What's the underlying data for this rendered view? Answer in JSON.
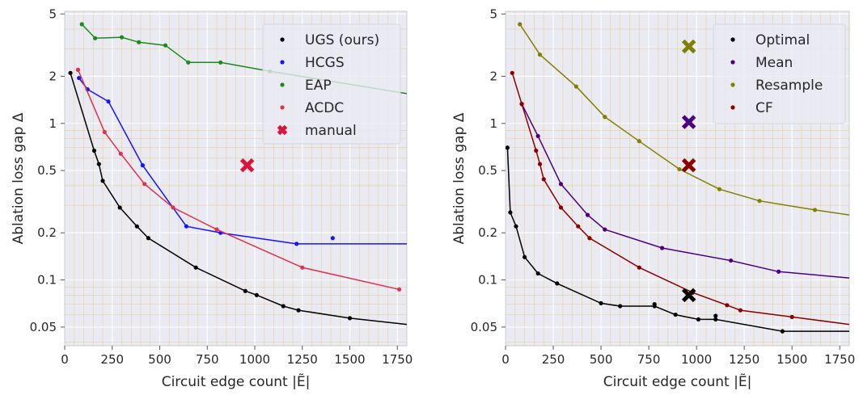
{
  "colors": {
    "panel_bg": "#eaeaf2",
    "major_grid": "#ffffff",
    "minor_grid": "#e8d2a8",
    "frame": "#cccccc",
    "UGS (ours)": "#000000",
    "HCGS": "#1414ff",
    "EAP": "#1a8c1a",
    "ACDC": "#e0304e",
    "manual": "#dc143c",
    "Optimal": "#000000",
    "Mean": "#4b0082",
    "Resample": "#808000",
    "CF": "#8b0000"
  },
  "chart_data": [
    {
      "type": "line",
      "xlabel": "Circuit edge count |Ẽ|",
      "ylabel": "Ablation loss gap Δ",
      "xlim": [
        0,
        1800
      ],
      "ylim": [
        0.038,
        5.2
      ],
      "yscale": "log",
      "grid": true,
      "legend_position": "top-right",
      "x_ticks": [
        "0",
        "250",
        "500",
        "750",
        "1000",
        "1250",
        "1500",
        "1750"
      ],
      "y_ticks": [
        "5",
        "2",
        "1",
        "0.5",
        "0.2",
        "0.1",
        "0.05"
      ],
      "series": [
        {
          "name": "UGS (ours)",
          "marker": "dot",
          "x": [
            30,
            155,
            180,
            200,
            290,
            380,
            440,
            690,
            950,
            1010,
            1150,
            1230,
            1500,
            1800
          ],
          "y": [
            2.1,
            0.67,
            0.55,
            0.43,
            0.29,
            0.22,
            0.185,
            0.12,
            0.085,
            0.08,
            0.068,
            0.064,
            0.057,
            0.052
          ]
        },
        {
          "name": "HCGS",
          "marker": "dot",
          "x": [
            75,
            120,
            230,
            410,
            640,
            820,
            1220,
            1800
          ],
          "y": [
            1.95,
            1.65,
            1.38,
            0.54,
            0.22,
            0.2,
            0.17,
            0.17
          ],
          "extra_points": [
            {
              "x": 1410,
              "y": 0.185
            }
          ]
        },
        {
          "name": "EAP",
          "marker": "dot",
          "x": [
            90,
            160,
            300,
            390,
            530,
            650,
            820,
            1080,
            1800
          ],
          "y": [
            4.3,
            3.5,
            3.55,
            3.3,
            3.15,
            2.45,
            2.45,
            2.15,
            1.55
          ]
        },
        {
          "name": "ACDC",
          "marker": "dot",
          "x": [
            70,
            210,
            295,
            420,
            570,
            800,
            1250,
            1760
          ],
          "y": [
            2.2,
            0.88,
            0.64,
            0.41,
            0.29,
            0.21,
            0.12,
            0.087
          ]
        },
        {
          "name": "manual",
          "marker": "x",
          "x": [
            960
          ],
          "y": [
            0.54
          ]
        }
      ]
    },
    {
      "type": "line",
      "xlabel": "Circuit edge count |Ẽ|",
      "ylabel": "Ablation loss gap Δ",
      "xlim": [
        0,
        1800
      ],
      "ylim": [
        0.038,
        5.2
      ],
      "yscale": "log",
      "grid": true,
      "legend_position": "top-right",
      "x_ticks": [
        "0",
        "250",
        "500",
        "750",
        "1000",
        "1250",
        "1500",
        "1750"
      ],
      "y_ticks": [
        "5",
        "2",
        "1",
        "0.5",
        "0.2",
        "0.1",
        "0.05"
      ],
      "series": [
        {
          "name": "Optimal",
          "marker": "dot",
          "x": [
            10,
            25,
            55,
            100,
            170,
            270,
            500,
            600,
            780,
            890,
            1010,
            1100,
            1450,
            1800
          ],
          "y": [
            0.7,
            0.27,
            0.22,
            0.14,
            0.11,
            0.095,
            0.071,
            0.068,
            0.068,
            0.06,
            0.056,
            0.056,
            0.047,
            0.047
          ],
          "extra_points": [
            {
              "x": 780,
              "y": 0.07
            },
            {
              "x": 1100,
              "y": 0.059
            }
          ],
          "manual_marker": {
            "x": 960,
            "y": 0.08
          }
        },
        {
          "name": "Mean",
          "marker": "dot",
          "x": [
            85,
            170,
            290,
            430,
            520,
            820,
            1180,
            1430,
            1800
          ],
          "y": [
            1.33,
            0.83,
            0.41,
            0.26,
            0.21,
            0.16,
            0.133,
            0.113,
            0.103
          ],
          "manual_marker": {
            "x": 960,
            "y": 1.02
          }
        },
        {
          "name": "Resample",
          "marker": "dot",
          "x": [
            75,
            180,
            370,
            520,
            700,
            910,
            1120,
            1330,
            1620,
            1800
          ],
          "y": [
            4.3,
            2.75,
            1.72,
            1.1,
            0.77,
            0.51,
            0.38,
            0.32,
            0.28,
            0.26
          ],
          "manual_marker": {
            "x": 960,
            "y": 3.1
          }
        },
        {
          "name": "CF",
          "marker": "dot",
          "x": [
            35,
            85,
            160,
            180,
            200,
            290,
            380,
            440,
            700,
            980,
            1160,
            1230,
            1500,
            1800
          ],
          "y": [
            2.1,
            1.33,
            0.67,
            0.55,
            0.44,
            0.29,
            0.22,
            0.185,
            0.12,
            0.083,
            0.069,
            0.064,
            0.058,
            0.052
          ],
          "manual_marker": {
            "x": 960,
            "y": 0.54
          }
        }
      ]
    }
  ]
}
